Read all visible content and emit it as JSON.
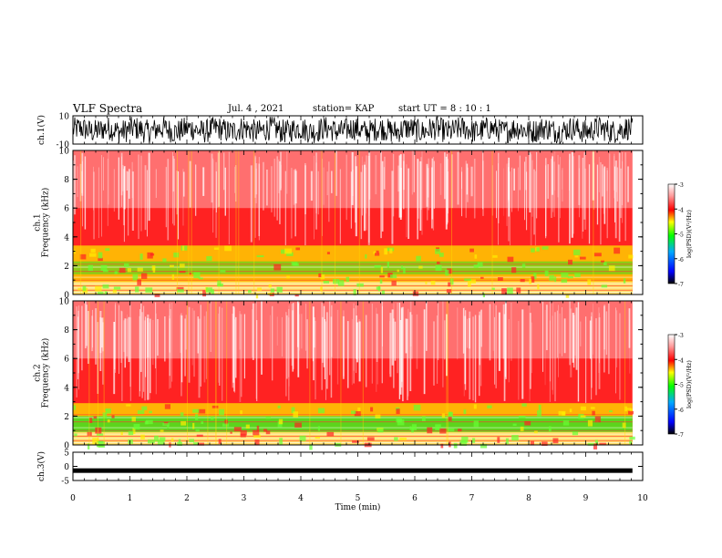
{
  "header": {
    "title": "VLF Spectra",
    "date": "Jul. 4 , 2021",
    "station": "station= KAP",
    "start": "start UT = 8 : 10 : 1"
  },
  "chart_data": [
    {
      "type": "line",
      "ylabel": "ch.1(V)",
      "ylim": [
        -10,
        10
      ],
      "yticks": [
        "10",
        "-10"
      ],
      "xlim": [
        0,
        10
      ],
      "note": "dense noisy waveform"
    },
    {
      "type": "heatmap",
      "ylabel": "ch.1\nFrequency (kHz)",
      "ylim": [
        0,
        10
      ],
      "yticks": [
        "0",
        "2",
        "4",
        "6",
        "8",
        "10"
      ],
      "xlim": [
        0,
        10
      ],
      "colorbar": {
        "label": "log(PSD)(V²/Hz)",
        "ticks": [
          "-3",
          "-4",
          "-5",
          "-6",
          "-7"
        ],
        "range": [
          -7,
          -3
        ]
      }
    },
    {
      "type": "heatmap",
      "ylabel": "ch.2\nFrequency (kHz)",
      "ylim": [
        0,
        10
      ],
      "yticks": [
        "0",
        "2",
        "4",
        "6",
        "8",
        "10"
      ],
      "xlim": [
        0,
        10
      ],
      "colorbar": {
        "label": "log(PSD)(V²/Hz)",
        "ticks": [
          "-3",
          "-4",
          "-5",
          "-6",
          "-7"
        ],
        "range": [
          -7,
          -3
        ]
      }
    },
    {
      "type": "line",
      "ylabel": "ch.3(V)",
      "ylim": [
        -5,
        5
      ],
      "yticks": [
        "5",
        "0",
        "-5"
      ],
      "xlim": [
        0,
        10
      ],
      "xlabel": "Time (min)",
      "xticks": [
        "0",
        "1",
        "2",
        "3",
        "4",
        "5",
        "6",
        "7",
        "8",
        "9",
        "10"
      ],
      "note": "flat trace near -1.5 V",
      "level": -1.5
    }
  ]
}
